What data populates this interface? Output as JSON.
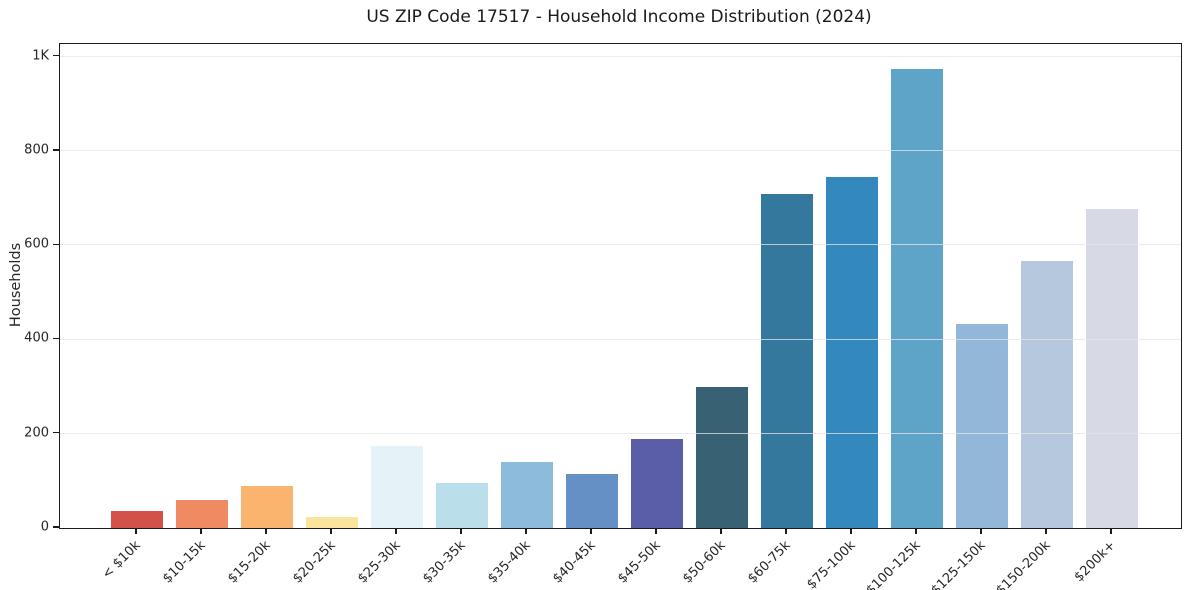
{
  "title": "US ZIP Code 17517 - Household Income Distribution (2024)",
  "chart_data": {
    "type": "bar",
    "title": "US ZIP Code 17517 - Household Income Distribution (2024)",
    "xlabel": "",
    "ylabel": "Households",
    "categories": [
      "< $10k",
      "$10-15k",
      "$15-20k",
      "$20-25k",
      "$25-30k",
      "$30-35k",
      "$35-40k",
      "$40-45k",
      "$45-50k",
      "$50-60k",
      "$60-75k",
      "$75-100k",
      "$100-125k",
      "$125-150k",
      "$150-200k",
      "$200k+"
    ],
    "values": [
      36,
      59,
      89,
      23,
      174,
      95,
      140,
      115,
      189,
      300,
      709,
      745,
      974,
      433,
      567,
      677
    ],
    "bar_colors": [
      "#d25148",
      "#f08a63",
      "#fbb46e",
      "#fbe49c",
      "#e5f2f7",
      "#badfeb",
      "#8dbbdb",
      "#6590c6",
      "#5a5ea9",
      "#386273",
      "#35789e",
      "#3389bd",
      "#5da4c8",
      "#93b7d8",
      "#b5c8de",
      "#d7d9e5"
    ],
    "ylim": [
      0,
      1027
    ],
    "ytick_values": [
      0,
      200,
      400,
      600,
      800,
      1000
    ],
    "ytick_labels": [
      "0",
      "200",
      "400",
      "600",
      "800",
      "1K"
    ],
    "grid": "horizontal",
    "legend": "none",
    "background": "#ffffff"
  },
  "colors": {
    "spine": "#1c1c1c",
    "grid": "#e5e5e5",
    "text": "#262626",
    "background": "#ffffff"
  }
}
